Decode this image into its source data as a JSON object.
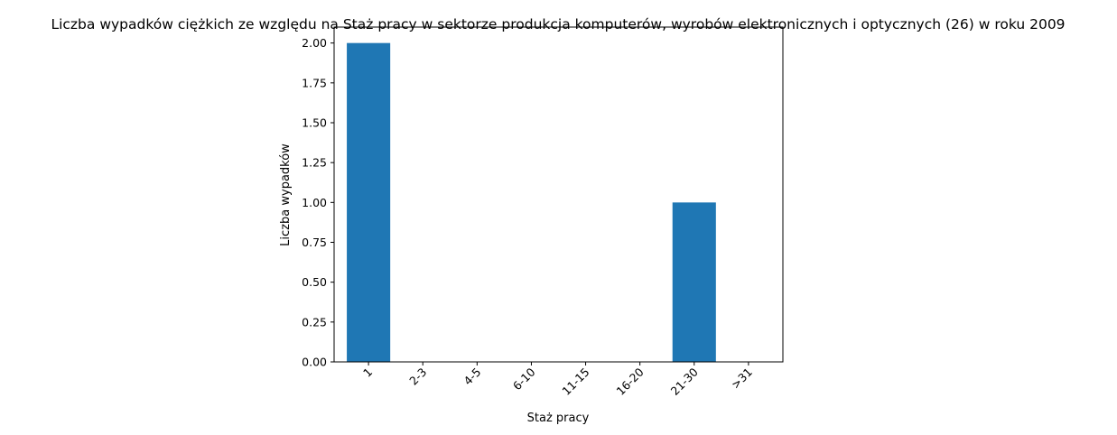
{
  "chart_data": {
    "type": "bar",
    "title": "Liczba wypadków ciężkich ze względu na Staż pracy w sektorze produkcja komputerów, wyrobów elektronicznych i optycznych (26)  w roku 2009",
    "xlabel": "Staż pracy",
    "ylabel": "Liczba wypadków",
    "categories": [
      "1",
      "2-3",
      "4-5",
      "6-10",
      "11-15",
      "16-20",
      "21-30",
      ">31"
    ],
    "values": [
      2,
      0,
      0,
      0,
      0,
      0,
      1,
      0
    ],
    "ylim": [
      0,
      2.1
    ],
    "yticks": [
      "0.00",
      "0.25",
      "0.50",
      "0.75",
      "1.00",
      "1.25",
      "1.50",
      "1.75",
      "2.00"
    ],
    "grid": false,
    "bar_color": "#1f77b4",
    "x_tick_rotation": 45
  }
}
